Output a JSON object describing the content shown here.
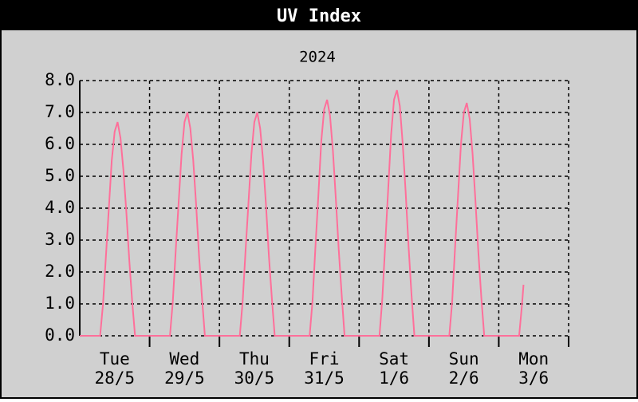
{
  "chart_data": {
    "type": "line",
    "title": "UV Index",
    "subtitle": "2024",
    "xlim": [
      0,
      168
    ],
    "xgrid": [
      24,
      48,
      72,
      96,
      120,
      144
    ],
    "xticks": [
      {
        "value": 12,
        "label": "Tue"
      },
      {
        "value": 36,
        "label": "Wed"
      },
      {
        "value": 60,
        "label": "Thu"
      },
      {
        "value": 84,
        "label": "Fri"
      },
      {
        "value": 108,
        "label": "Sat"
      },
      {
        "value": 132,
        "label": "Sun"
      },
      {
        "value": 156,
        "label": "Mon"
      }
    ],
    "xtick_dates": [
      "28/5",
      "29/5",
      "30/5",
      "31/5",
      "1/6",
      "2/6",
      "3/6"
    ],
    "ylim": [
      0,
      8
    ],
    "yticks": [
      {
        "value": 0,
        "label": "0.0"
      },
      {
        "value": 1,
        "label": "1.0"
      },
      {
        "value": 2,
        "label": "2.0"
      },
      {
        "value": 3,
        "label": "3.0"
      },
      {
        "value": 4,
        "label": "4.0"
      },
      {
        "value": 5,
        "label": "5.0"
      },
      {
        "value": 6,
        "label": "6.0"
      },
      {
        "value": 7,
        "label": "7.0"
      },
      {
        "value": 8,
        "label": "8.0"
      }
    ],
    "grid": true,
    "series": [
      {
        "color": "#ff6f9a",
        "x": [
          0,
          7,
          8,
          9,
          10,
          11,
          12,
          13,
          14,
          15,
          16,
          17,
          18,
          19,
          31,
          32,
          33,
          34,
          35,
          36,
          37,
          38,
          39,
          40,
          41,
          42,
          43,
          55,
          56,
          57,
          58,
          59,
          60,
          61,
          62,
          63,
          64,
          65,
          66,
          67,
          79,
          80,
          81,
          82,
          83,
          84,
          85,
          86,
          87,
          88,
          89,
          90,
          91,
          103,
          104,
          105,
          106,
          107,
          108,
          109,
          110,
          111,
          112,
          113,
          114,
          115,
          127,
          128,
          129,
          130,
          131,
          132,
          133,
          134,
          135,
          136,
          137,
          138,
          139,
          151,
          152,
          152.5
        ],
        "values": [
          0,
          0,
          1.0,
          2.5,
          4.0,
          5.5,
          6.4,
          6.7,
          6.2,
          5.2,
          3.9,
          2.4,
          1.1,
          0,
          0,
          1.1,
          2.7,
          4.2,
          5.7,
          6.7,
          7.0,
          6.5,
          5.5,
          4.1,
          2.5,
          1.2,
          0,
          0,
          1.1,
          2.7,
          4.2,
          5.7,
          6.7,
          7.0,
          6.5,
          5.5,
          4.1,
          2.5,
          1.2,
          0,
          0,
          1.1,
          2.8,
          4.4,
          6.1,
          7.1,
          7.4,
          6.9,
          5.8,
          4.3,
          2.7,
          1.3,
          0,
          0,
          1.2,
          2.9,
          4.6,
          6.3,
          7.4,
          7.7,
          7.2,
          6.0,
          4.5,
          2.8,
          1.3,
          0,
          0,
          1.1,
          2.8,
          4.4,
          6.0,
          7.0,
          7.3,
          6.8,
          5.7,
          4.2,
          2.6,
          1.2,
          0,
          0,
          1.0,
          1.6
        ]
      }
    ]
  }
}
